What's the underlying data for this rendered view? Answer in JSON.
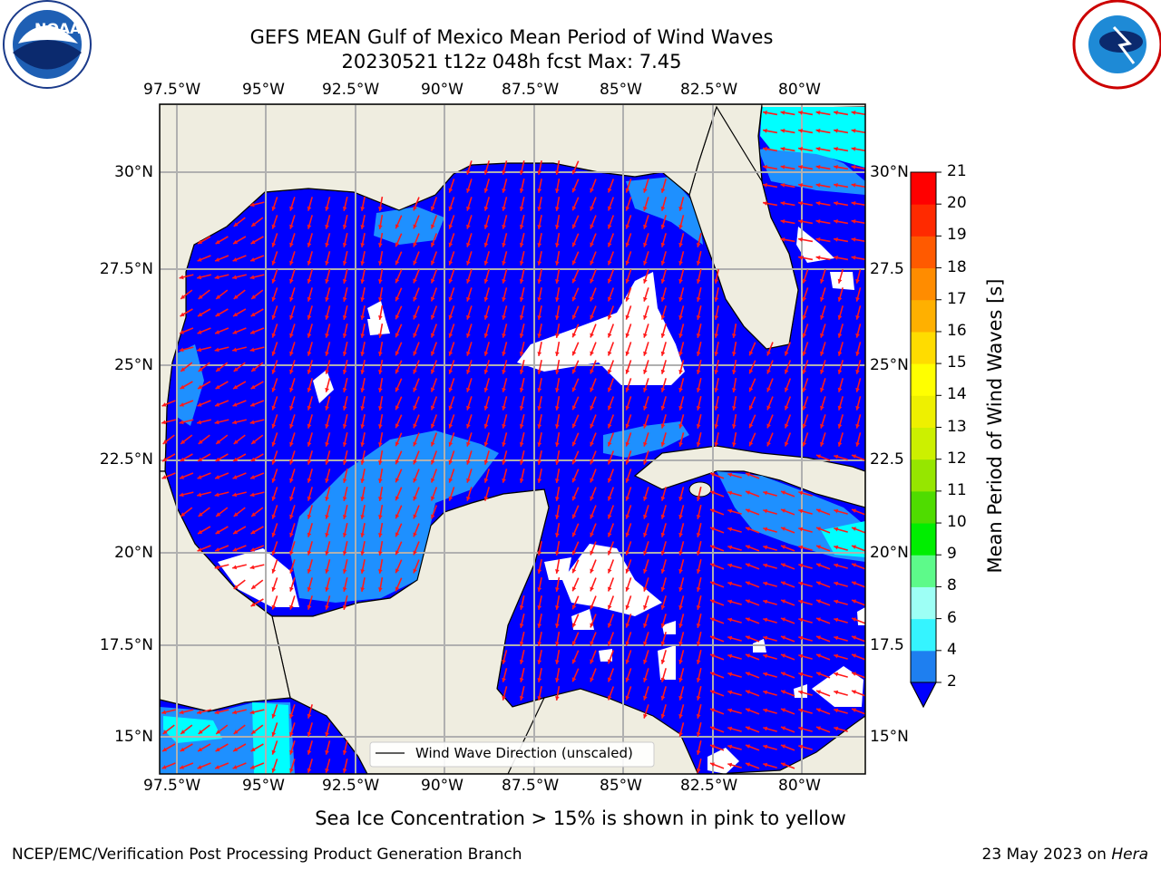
{
  "header": {
    "title_line1": "GEFS MEAN Gulf of Mexico Mean Period of Wind Waves",
    "title_line2": "20230521 t12z 048h fcst   Max: 7.45"
  },
  "logos": {
    "left": {
      "icon": "noaa-logo",
      "text": "NOAA",
      "ring_text": "NATIONAL OCEANIC AND ATMOSPHERIC ADMINISTRATION · U.S. DEPARTMENT OF COMMERCE"
    },
    "right": {
      "icon": "nws-logo",
      "ring_text": "NATIONAL WEATHER SERVICE"
    }
  },
  "map": {
    "lon_ticks": [
      "97.5°W",
      "95°W",
      "92.5°W",
      "90°W",
      "87.5°W",
      "85°W",
      "82.5°W",
      "80°W"
    ],
    "lat_ticks_left": [
      "30°N",
      "27.5°N",
      "25°N",
      "22.5°N",
      "20°N",
      "17.5°N",
      "15°N"
    ],
    "lat_ticks_right": [
      "30°N",
      "27.5",
      "25°N",
      "22.5",
      "20°N",
      "17.5",
      "15°N"
    ],
    "legend_label": "Wind Wave Direction (unscaled)",
    "colors": {
      "land": "#efede0",
      "ocean": "#0000ff",
      "shallow": "#1e90ff",
      "coastline": "#000000",
      "arrow": "#ff0000",
      "grid": "#b0b0b0"
    }
  },
  "colorbar": {
    "label": "Mean Period of Wind Waves [s]",
    "ticks": [
      "2",
      "4",
      "6",
      "8",
      "9",
      "10",
      "11",
      "12",
      "13",
      "14",
      "15",
      "16",
      "17",
      "18",
      "19",
      "20",
      "21"
    ],
    "colors": [
      "#1e7ff0",
      "#00eaff",
      "#35f4ff",
      "#9dfff5",
      "#5dfa8a",
      "#00ee00",
      "#4fdc00",
      "#96e600",
      "#ccf000",
      "#eef000",
      "#ffff00",
      "#ffdc00",
      "#ffb000",
      "#ff8c00",
      "#ff5a00",
      "#ff2a00",
      "#ff0000"
    ],
    "extend_color": "#0000ff"
  },
  "caption": "Sea Ice Concentration > 15% is shown in pink to yellow",
  "footer": {
    "left": "NCEP/EMC/Verification Post Processing Product Generation Branch",
    "date": "23 May 2023 on ",
    "machine": "Hera"
  }
}
